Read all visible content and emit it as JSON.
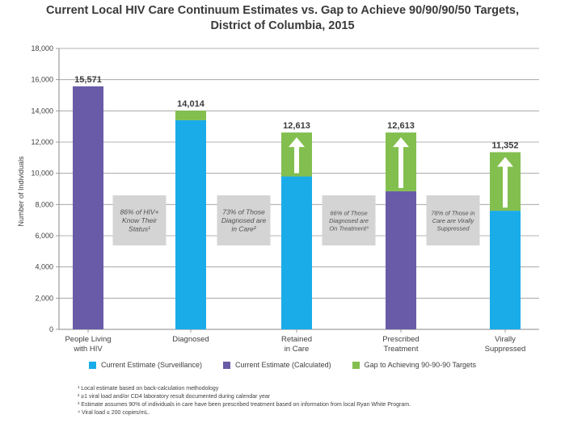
{
  "colors": {
    "surveillance": "#1aace8",
    "calculated": "#6a5ba8",
    "gap": "#83bf4f",
    "annotation_bg": "#d4d4d4",
    "axis": "#8a8a8a"
  },
  "chart_data": {
    "type": "bar",
    "title_line1": "Current Local HIV Care Continuum Estimates vs. Gap to Achieve 90/90/90/50 Targets,",
    "title_line2": "District of Columbia, 2015",
    "ylabel": "Number of Individuals",
    "ylim": [
      0,
      18000
    ],
    "yticks": [
      {
        "value": 0,
        "label": "0"
      },
      {
        "value": 2000,
        "label": "2,000"
      },
      {
        "value": 4000,
        "label": "4,000"
      },
      {
        "value": 6000,
        "label": "6,000"
      },
      {
        "value": 8000,
        "label": "8,000"
      },
      {
        "value": 10000,
        "label": "10,000"
      },
      {
        "value": 12000,
        "label": "12,000"
      },
      {
        "value": 14000,
        "label": "14,000"
      },
      {
        "value": 16000,
        "label": "16,000"
      },
      {
        "value": 18000,
        "label": "18,000"
      }
    ],
    "grid": true,
    "categories": [
      {
        "line1": "People Living",
        "line2": "with HIV"
      },
      {
        "line1": "Diagnosed",
        "line2": ""
      },
      {
        "line1": "Retained",
        "line2": "in Care"
      },
      {
        "line1": "Prescribed",
        "line2": "Treatment"
      },
      {
        "line1": "Virally",
        "line2": "Suppressed"
      }
    ],
    "bars": [
      {
        "estimate_type": "calculated",
        "value": 15571,
        "target": 15571,
        "target_label": "15,571"
      },
      {
        "estimate_type": "surveillance",
        "value": 13400,
        "target": 14014,
        "target_label": "14,014"
      },
      {
        "estimate_type": "surveillance",
        "value": 9800,
        "target": 12613,
        "target_label": "12,613"
      },
      {
        "estimate_type": "calculated",
        "value": 8850,
        "target": 12613,
        "target_label": "12,613"
      },
      {
        "estimate_type": "surveillance",
        "value": 7600,
        "target": 11352,
        "target_label": "11,352"
      }
    ],
    "annotations": [
      {
        "lines": [
          "86% of HIV+",
          "Know Their",
          "Status¹"
        ]
      },
      {
        "lines": [
          "73% of Those",
          "Diagnosed are",
          "in Care²"
        ]
      },
      {
        "lines": [
          "66% of Those",
          "Diagnosed are",
          "On Treatment³"
        ]
      },
      {
        "lines": [
          "78% of Those in",
          "Care are Virally",
          "Suppressed"
        ]
      }
    ],
    "legend": [
      {
        "key": "surveillance",
        "label": "Current Estimate (Surveillance)"
      },
      {
        "key": "calculated",
        "label": "Current Estimate (Calculated)"
      },
      {
        "key": "gap",
        "label": "Gap to Achieving 90-90-90 Targets"
      }
    ]
  },
  "footnotes": [
    "¹ Local estimate based on back-calculation methodology",
    "² ≥1 viral load and/or CD4 laboratory result documented during calendar year",
    "³ Estimate assumes 90% of individuals in care have been prescribed treatment based on information from local Ryan White Program.",
    "⁴ Viral load ≤ 200 copies/mL."
  ]
}
